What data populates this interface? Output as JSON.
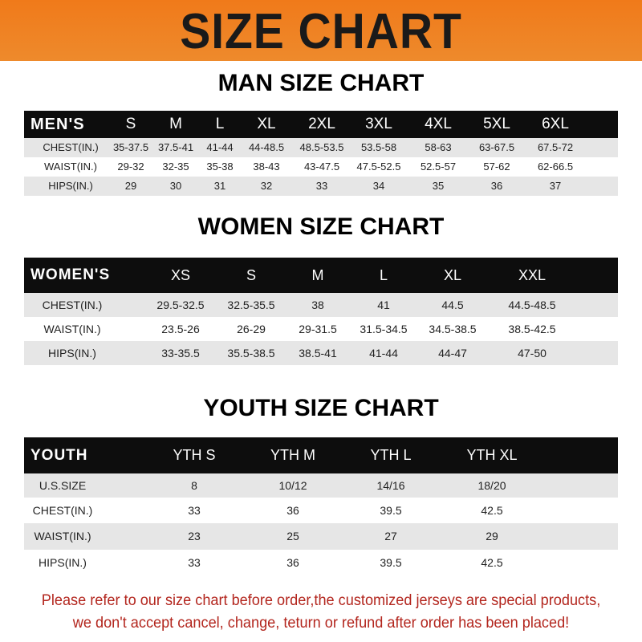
{
  "banner": {
    "title": "SIZE CHART",
    "color": "#f07a1a"
  },
  "men": {
    "title": "MAN SIZE CHART",
    "header": [
      "MEN'S",
      "S",
      "M",
      "L",
      "XL",
      "2XL",
      "3XL",
      "4XL",
      "5XL",
      "6XL"
    ],
    "rows": [
      [
        "CHEST(IN.)",
        "35-37.5",
        "37.5-41",
        "41-44",
        "44-48.5",
        "48.5-53.5",
        "53.5-58",
        "58-63",
        "63-67.5",
        "67.5-72"
      ],
      [
        "WAIST(IN.)",
        "29-32",
        "32-35",
        "35-38",
        "38-43",
        "43-47.5",
        "47.5-52.5",
        "52.5-57",
        "57-62",
        "62-66.5"
      ],
      [
        "HIPS(IN.)",
        "29",
        "30",
        "31",
        "32",
        "33",
        "34",
        "35",
        "36",
        "37"
      ]
    ]
  },
  "women": {
    "title": "WOMEN SIZE CHART",
    "header": [
      "WOMEN'S",
      "XS",
      "S",
      "M",
      "L",
      "XL",
      "XXL"
    ],
    "rows": [
      [
        "CHEST(IN.)",
        "29.5-32.5",
        "32.5-35.5",
        "38",
        "41",
        "44.5",
        "44.5-48.5"
      ],
      [
        "WAIST(IN.)",
        "23.5-26",
        "26-29",
        "29-31.5",
        "31.5-34.5",
        "34.5-38.5",
        "38.5-42.5"
      ],
      [
        "HIPS(IN.)",
        "33-35.5",
        "35.5-38.5",
        "38.5-41",
        "41-44",
        "44-47",
        "47-50"
      ]
    ]
  },
  "youth": {
    "title": "YOUTH SIZE CHART",
    "header": [
      "YOUTH",
      "YTH S",
      "YTH M",
      "YTH L",
      "YTH XL"
    ],
    "rows": [
      [
        "U.S.SIZE",
        "8",
        "10/12",
        "14/16",
        "18/20"
      ],
      [
        "CHEST(IN.)",
        "33",
        "36",
        "39.5",
        "42.5"
      ],
      [
        "WAIST(IN.)",
        "23",
        "25",
        "27",
        "29"
      ],
      [
        "HIPS(IN.)",
        "33",
        "36",
        "39.5",
        "42.5"
      ]
    ]
  },
  "notice": {
    "line1": "Please refer to our size chart before order,the customized jerseys are special products,",
    "line2": "we don't accept cancel, change, teturn or refund after order has been placed!",
    "color": "#b3261e"
  }
}
